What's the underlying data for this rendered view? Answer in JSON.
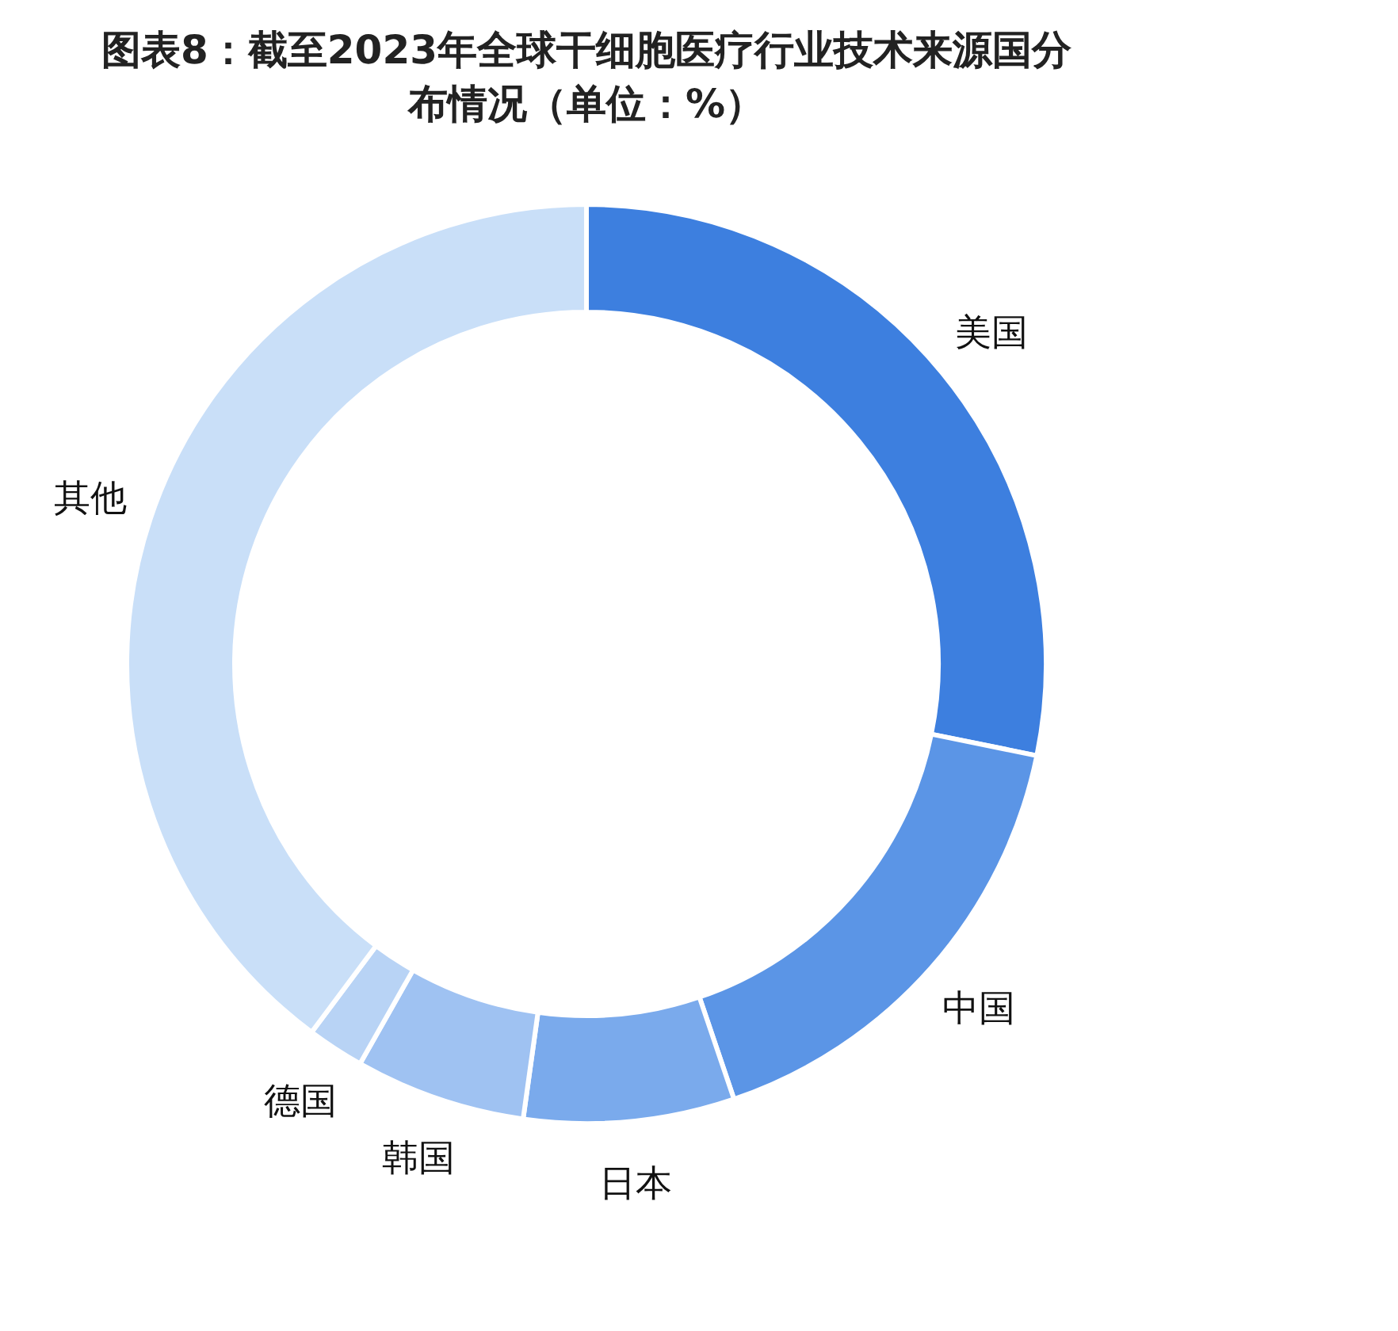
{
  "chart_data": {
    "type": "donut",
    "title": "图表8：截至2023年全球干细胞医疗行业技术来源国分布情况（单位：%）",
    "categories": [
      "美国",
      "中国",
      "日本",
      "韩国",
      "德国",
      "其他"
    ],
    "values": [
      28.2,
      16.6,
      7.4,
      6.0,
      2.0,
      39.8
    ],
    "colors": [
      "#3d7fdf",
      "#5b95e6",
      "#7aaaec",
      "#9fc2f2",
      "#b8d3f5",
      "#c9dff8"
    ],
    "legend": false
  }
}
